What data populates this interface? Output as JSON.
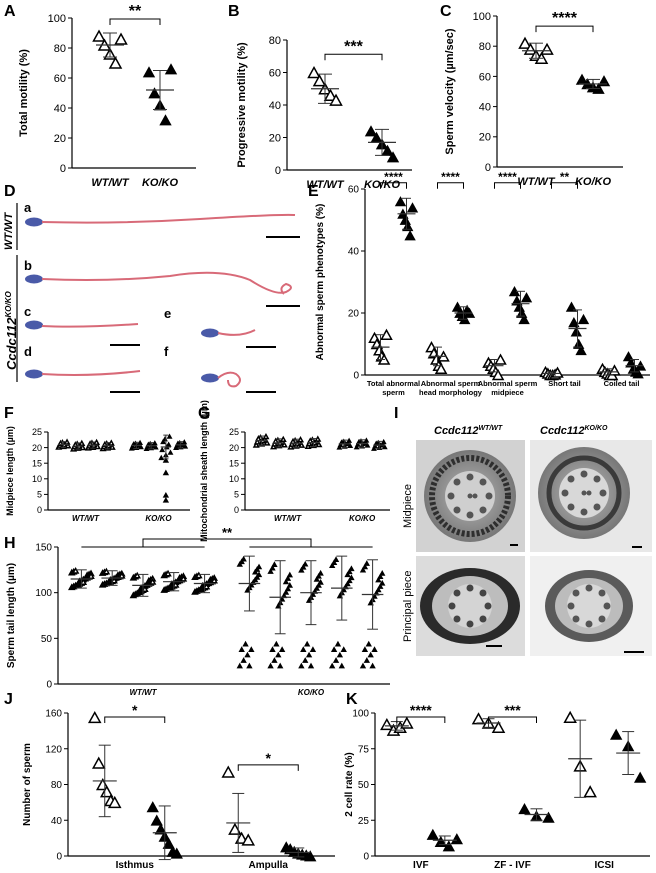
{
  "panels": {
    "A": {
      "letter": "A"
    },
    "B": {
      "letter": "B"
    },
    "C": {
      "letter": "C"
    },
    "D": {
      "letter": "D",
      "sub": [
        "a",
        "b",
        "c",
        "e",
        "d",
        "f"
      ],
      "wt_label": "WT/WT",
      "ko_label_main": "Ccdc112",
      "ko_label_sup": "KO/KO"
    },
    "E": {
      "letter": "E"
    },
    "F": {
      "letter": "F"
    },
    "G": {
      "letter": "G"
    },
    "H": {
      "letter": "H"
    },
    "I": {
      "letter": "I",
      "col_wt_main": "Ccdc112",
      "col_wt_sup": "WT/WT",
      "col_ko_main": "Ccdc112",
      "col_ko_sup": "KO/KO",
      "row1": "Midpiece",
      "row2": "Principal piece"
    },
    "J": {
      "letter": "J"
    },
    "K": {
      "letter": "K"
    }
  },
  "colors": {
    "wt_marker": "open-triangle",
    "ko_marker": "filled-triangle",
    "stain_head": "#4a5aa8",
    "stain_tail": "#d86a78",
    "em_bg": "#8a8a8a"
  },
  "chart_data": [
    {
      "id": "A",
      "type": "scatter",
      "ylabel": "Total motility (%)",
      "categories": [
        "WT/WT",
        "KO/KO"
      ],
      "ylim": [
        0,
        100
      ],
      "yticks": [
        0,
        20,
        40,
        60,
        80,
        100
      ],
      "series": [
        {
          "values": [
            88,
            82,
            76,
            70,
            86
          ]
        },
        {
          "values": [
            64,
            50,
            42,
            32,
            66
          ]
        }
      ],
      "mean": [
        82,
        52
      ],
      "sd": [
        8,
        13
      ],
      "sig": [
        {
          "from": 0,
          "to": 1,
          "text": "**"
        }
      ]
    },
    {
      "id": "B",
      "type": "scatter",
      "ylabel": "Progressive motility (%)",
      "categories": [
        "WT/WT",
        "KO/KO"
      ],
      "ylim": [
        0,
        80
      ],
      "yticks": [
        0,
        20,
        40,
        60,
        80
      ],
      "series": [
        {
          "values": [
            60,
            55,
            50,
            46,
            43
          ]
        },
        {
          "values": [
            24,
            20,
            16,
            12,
            8
          ]
        }
      ],
      "mean": [
        50,
        17
      ],
      "sd": [
        9,
        8
      ],
      "sig": [
        {
          "from": 0,
          "to": 1,
          "text": "***"
        }
      ]
    },
    {
      "id": "C",
      "type": "scatter",
      "ylabel": "Sperm velocity (µm/sec)",
      "categories": [
        "WT/WT",
        "KO/KO"
      ],
      "ylim": [
        0,
        100
      ],
      "yticks": [
        0,
        20,
        40,
        60,
        80,
        100
      ],
      "series": [
        {
          "values": [
            82,
            78,
            74,
            72,
            78
          ]
        },
        {
          "values": [
            58,
            55,
            53,
            52,
            57
          ]
        }
      ],
      "mean": [
        77,
        55
      ],
      "sd": [
        5,
        3
      ],
      "sig": [
        {
          "from": 0,
          "to": 1,
          "text": "****"
        }
      ]
    },
    {
      "id": "E",
      "type": "scatter",
      "ylabel": "Abnormal sperm phenotypes (%)",
      "ylim": [
        0,
        60
      ],
      "yticks": [
        0,
        20,
        40,
        60
      ],
      "categories": [
        "Total abnormal sperm",
        "Abnormal sperm head morphology",
        "Abnormal sperm midpiece",
        "Short tail",
        "Coiled tail"
      ],
      "wt": [
        [
          12,
          10,
          8,
          6,
          5,
          13
        ],
        [
          9,
          7,
          5,
          3,
          2,
          6
        ],
        [
          4,
          3,
          2,
          1,
          0,
          5
        ],
        [
          1,
          0.5,
          0,
          0,
          0.2,
          0.8
        ],
        [
          2,
          1,
          0.5,
          0,
          0,
          1.5
        ]
      ],
      "ko": [
        [
          56,
          52,
          50,
          48,
          45,
          54
        ],
        [
          22,
          20,
          19,
          18,
          21,
          20
        ],
        [
          27,
          24,
          22,
          20,
          18,
          25
        ],
        [
          22,
          17,
          14,
          10,
          8,
          18
        ],
        [
          6,
          4,
          2,
          1,
          0.5,
          3
        ]
      ],
      "wt_mean": [
        9,
        6,
        3,
        0.5,
        1
      ],
      "wt_sd": [
        4,
        3,
        2,
        0.5,
        1
      ],
      "ko_mean": [
        52,
        20,
        23,
        15,
        3
      ],
      "ko_sd": [
        5,
        2,
        4,
        6,
        2
      ],
      "sig": [
        {
          "cat": 0,
          "text": "****"
        },
        {
          "cat": 1,
          "text": "****"
        },
        {
          "cat": 2,
          "text": "****"
        },
        {
          "cat": 3,
          "text": "**"
        }
      ]
    },
    {
      "id": "F",
      "type": "scatter",
      "ylabel": "Midpiece length (µm)",
      "ylim": [
        0,
        25
      ],
      "yticks": [
        0,
        5,
        10,
        15,
        20,
        25
      ],
      "groups": [
        "WT/WT",
        "KO/KO"
      ],
      "animals": [
        {
          "mean": 21,
          "sd": 0.9,
          "ko": false
        },
        {
          "mean": 20.5,
          "sd": 1,
          "ko": false
        },
        {
          "mean": 20.8,
          "sd": 1,
          "ko": false
        },
        {
          "mean": 20.6,
          "sd": 1,
          "ko": false
        },
        {
          "mean": 20.7,
          "sd": 1,
          "ko": true
        },
        {
          "mean": 20.6,
          "sd": 1,
          "ko": true
        },
        {
          "mean": 20.2,
          "sd": 3.8,
          "ko": true,
          "outliers": [
            4.8,
            3.2,
            12,
            16
          ]
        },
        {
          "mean": 20.9,
          "sd": 1,
          "ko": true
        }
      ]
    },
    {
      "id": "G",
      "type": "scatter",
      "ylabel": "Mitochondrial sheath length (µm)",
      "ylim": [
        0,
        25
      ],
      "yticks": [
        0,
        5,
        10,
        15,
        20,
        25
      ],
      "groups": [
        "WT/WT",
        "KO/KO"
      ],
      "animals": [
        {
          "mean": 22.2,
          "sd": 1.5,
          "ko": false
        },
        {
          "mean": 21.5,
          "sd": 1.3,
          "ko": false
        },
        {
          "mean": 21.4,
          "sd": 1.3,
          "ko": false
        },
        {
          "mean": 21.6,
          "sd": 1.3,
          "ko": false
        },
        {
          "mean": 21.2,
          "sd": 1.2,
          "ko": true
        },
        {
          "mean": 21.3,
          "sd": 1.2,
          "ko": true
        },
        {
          "mean": 20.8,
          "sd": 1.2,
          "ko": true
        }
      ]
    },
    {
      "id": "H",
      "type": "scatter",
      "ylabel": "Sperm tail length (µm)",
      "ylim": [
        0,
        150
      ],
      "yticks": [
        0,
        50,
        100,
        150
      ],
      "groups": [
        "WT/WT",
        "KO/KO"
      ],
      "sig": "**",
      "animals": [
        {
          "mean": 115,
          "sd": 10,
          "ko": false
        },
        {
          "mean": 116,
          "sd": 8,
          "ko": false
        },
        {
          "mean": 108,
          "sd": 12,
          "ko": false
        },
        {
          "mean": 112,
          "sd": 10,
          "ko": false
        },
        {
          "mean": 110,
          "sd": 10,
          "ko": false
        },
        {
          "mean": 110,
          "sd": 30,
          "ko": true
        },
        {
          "mean": 95,
          "sd": 40,
          "ko": true
        },
        {
          "mean": 100,
          "sd": 35,
          "ko": true
        },
        {
          "mean": 105,
          "sd": 35,
          "ko": true
        },
        {
          "mean": 98,
          "sd": 38,
          "ko": true
        }
      ]
    },
    {
      "id": "J",
      "type": "scatter",
      "ylabel": "Number of sperm",
      "ylim": [
        0,
        160
      ],
      "yticks": [
        0,
        40,
        80,
        120,
        160
      ],
      "categories": [
        "Isthmus",
        "Ampulla"
      ],
      "wt": [
        [
          155,
          104,
          80,
          72,
          62,
          60
        ],
        [
          94,
          30,
          20,
          18
        ]
      ],
      "ko": [
        [
          55,
          40,
          30,
          22,
          14,
          5,
          3
        ],
        [
          10,
          8,
          5,
          3,
          2,
          1,
          0
        ]
      ],
      "wt_mean": [
        84,
        37
      ],
      "wt_sd": [
        40,
        33
      ],
      "ko_mean": [
        26,
        4
      ],
      "ko_sd": [
        30,
        5
      ],
      "sig": [
        {
          "cat": 0,
          "text": "*"
        },
        {
          "cat": 1,
          "text": "*"
        }
      ]
    },
    {
      "id": "K",
      "type": "scatter",
      "ylabel": "2 cell rate (%)",
      "ylim": [
        0,
        100
      ],
      "yticks": [
        0,
        25,
        50,
        75,
        100
      ],
      "categories": [
        "IVF",
        "ZF - IVF",
        "ICSI"
      ],
      "wt": [
        [
          92,
          88,
          90,
          93
        ],
        [
          96,
          93,
          90
        ],
        [
          97,
          63,
          45
        ]
      ],
      "ko": [
        [
          15,
          10,
          7,
          12
        ],
        [
          33,
          28,
          27
        ],
        [
          85,
          77,
          55
        ]
      ],
      "wt_mean": [
        91,
        93,
        68
      ],
      "wt_sd": [
        3,
        3,
        27
      ],
      "ko_mean": [
        11,
        29,
        72
      ],
      "ko_sd": [
        3,
        4,
        15
      ],
      "sig": [
        {
          "cat": 0,
          "text": "****"
        },
        {
          "cat": 1,
          "text": "***"
        }
      ]
    }
  ]
}
